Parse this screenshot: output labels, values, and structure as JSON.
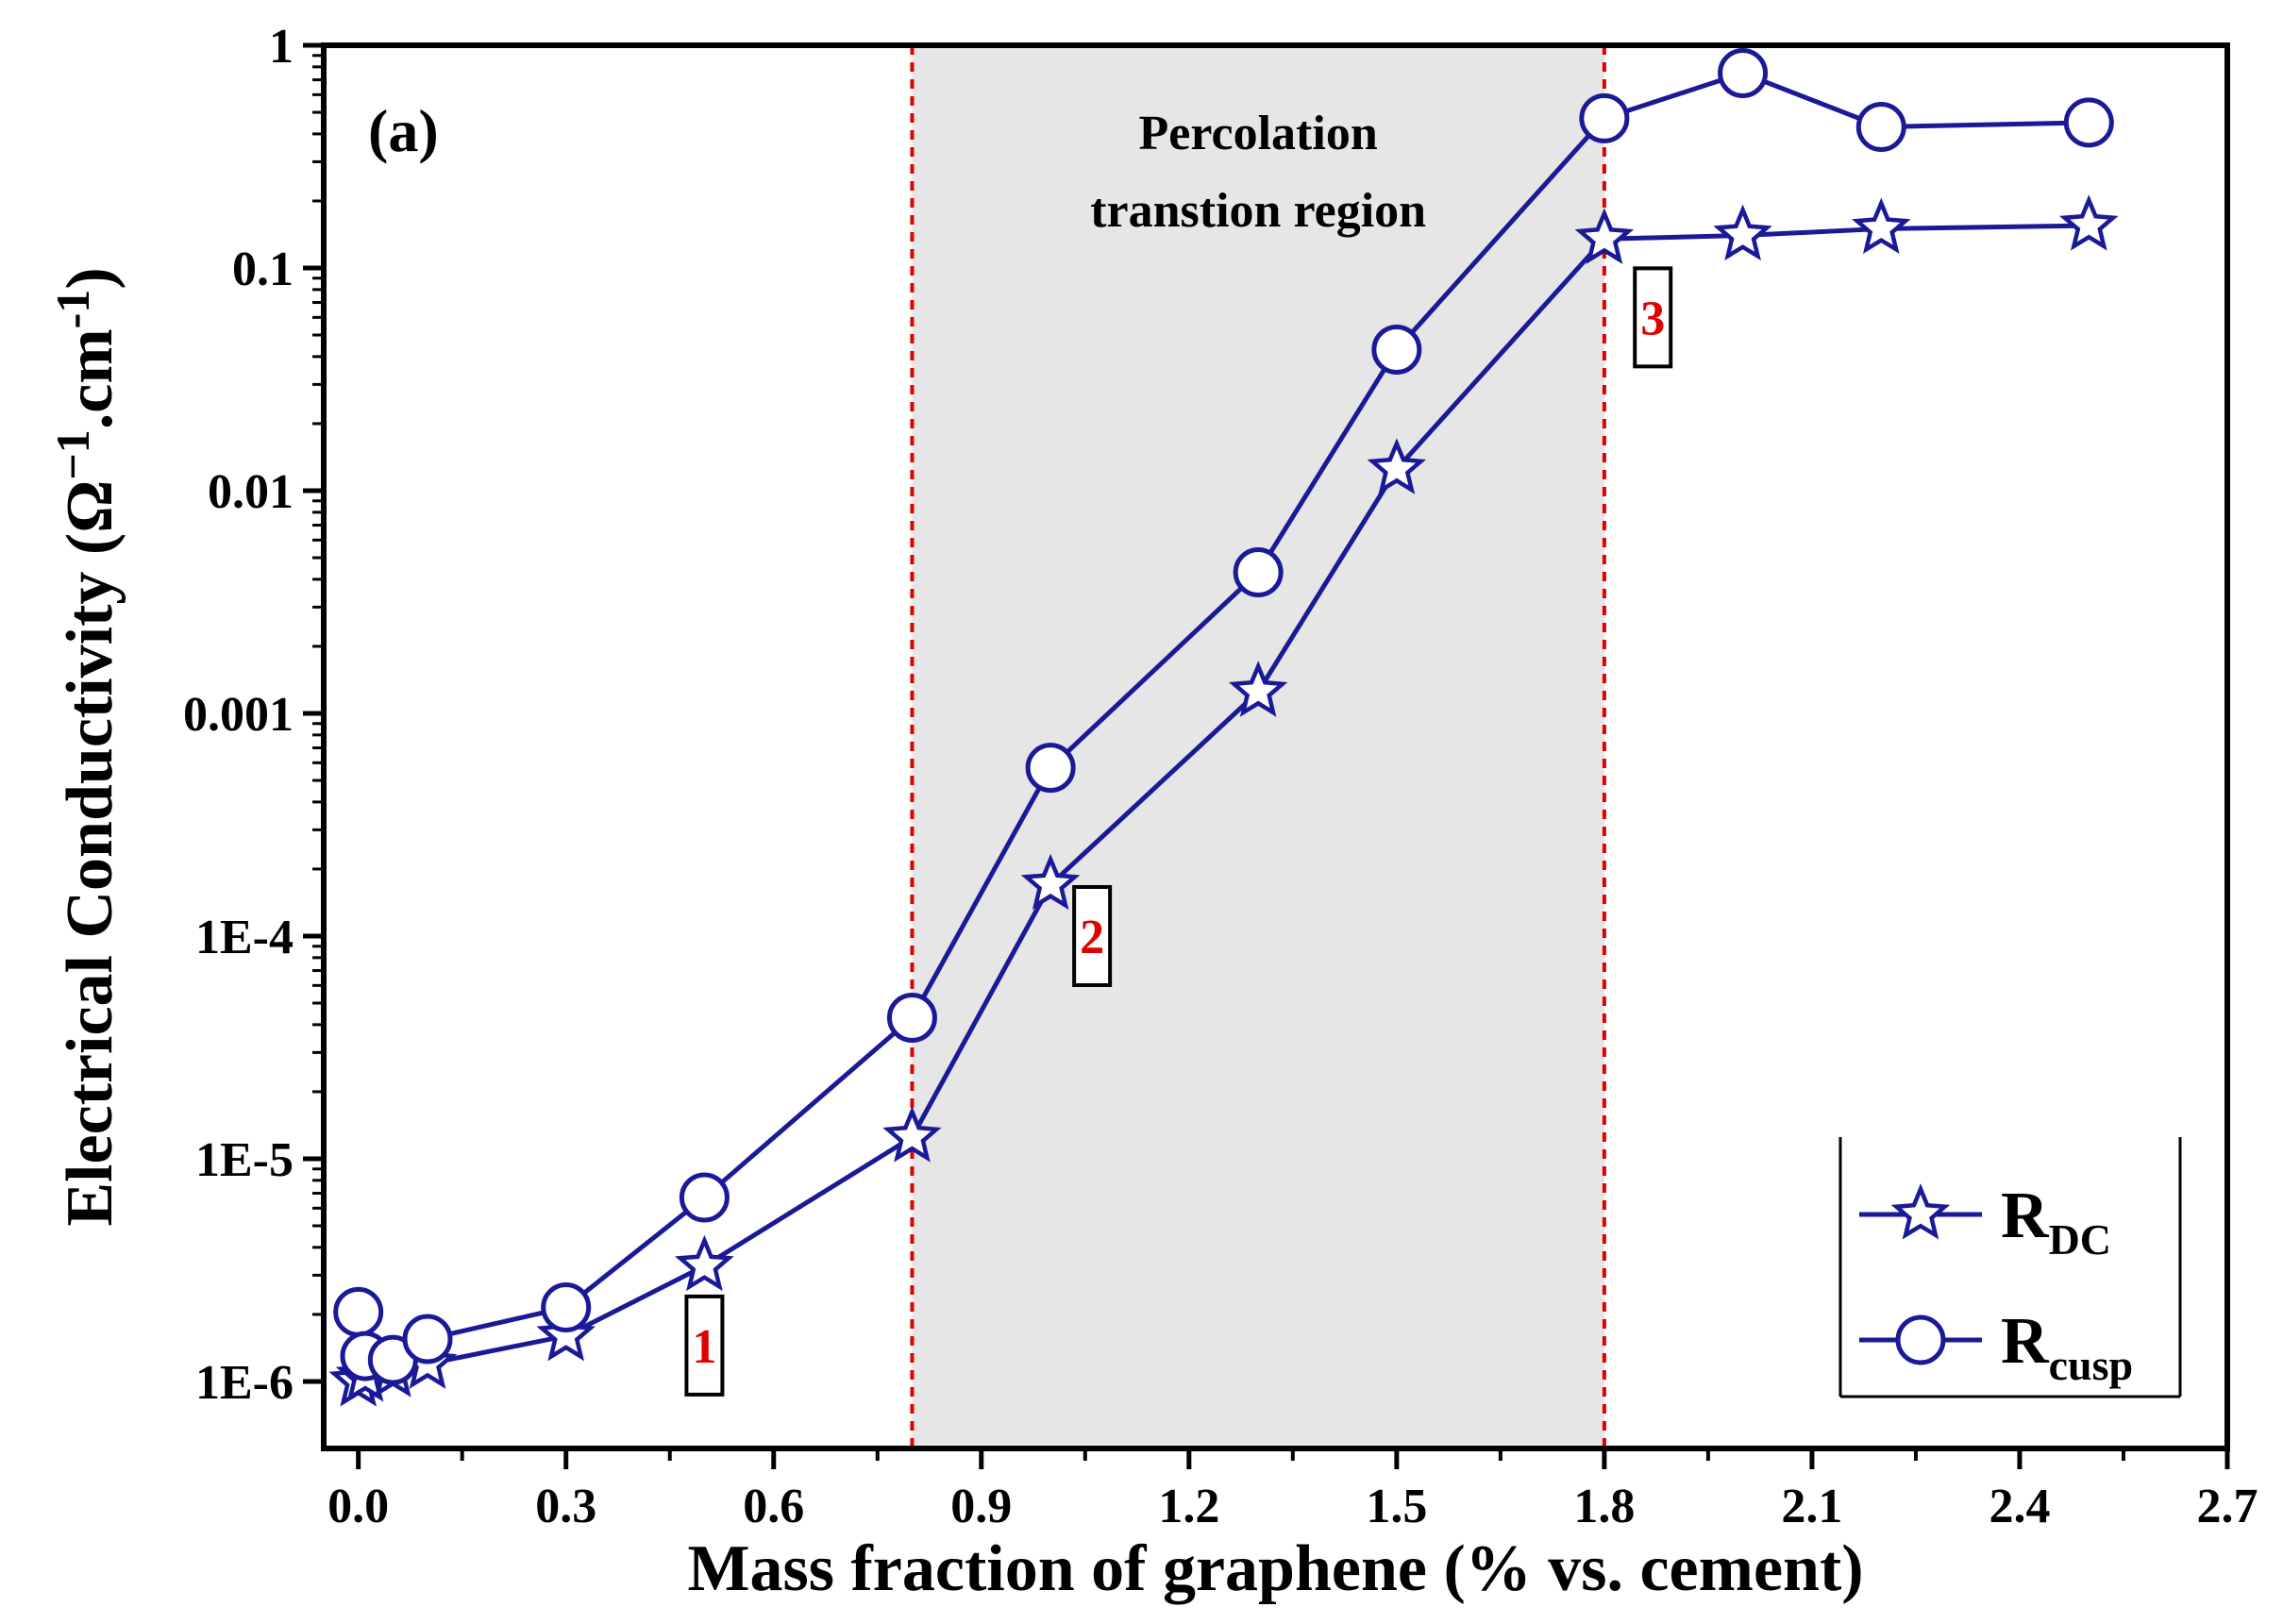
{
  "chart_data": {
    "type": "line",
    "panel_label": "(a)",
    "xlabel": "Mass fraction of graphene (% vs. cement)",
    "ylabel_parts": {
      "main": "Electrical Conductivity (Ω",
      "sup1": "−1",
      "mid": ".cm",
      "sup2": "-1",
      "end": ")"
    },
    "xlim": [
      -0.05,
      2.7
    ],
    "ylim": [
      5e-07,
      1
    ],
    "yscale": "log",
    "x_ticks": [
      "0.0",
      "0.3",
      "0.6",
      "0.9",
      "1.2",
      "1.5",
      "1.8",
      "2.1",
      "2.4",
      "2.7"
    ],
    "y_ticks": [
      "1E-6",
      "1E-5",
      "1E-4",
      "0.001",
      "0.01",
      "0.1",
      "1"
    ],
    "region": {
      "x_start": 0.8,
      "x_end": 1.8,
      "label_line1": "Percolation",
      "label_line2": "transtion region",
      "color": "#e6e6e6",
      "line_color": "#e00000"
    },
    "series": [
      {
        "name_main": "R",
        "name_sub": "DC",
        "marker": "star",
        "color": "#1a1a99",
        "x": [
          0.0,
          0.01,
          0.05,
          0.1,
          0.3,
          0.5,
          0.8,
          1.0,
          1.3,
          1.5,
          1.8,
          2.0,
          2.2,
          2.5
        ],
        "y": [
          1e-06,
          1.05e-06,
          1.1e-06,
          1.2e-06,
          1.6e-06,
          3.3e-06,
          1.25e-05,
          0.00017,
          0.00125,
          0.0125,
          0.135,
          0.14,
          0.15,
          0.155
        ]
      },
      {
        "name_main": "R",
        "name_sub": "cusp",
        "marker": "circle",
        "color": "#1a1a99",
        "x": [
          0.0,
          0.01,
          0.05,
          0.1,
          0.3,
          0.5,
          0.8,
          1.0,
          1.3,
          1.5,
          1.8,
          2.0,
          2.2,
          2.5
        ],
        "y": [
          2.05e-06,
          1.3e-06,
          1.25e-06,
          1.55e-06,
          2.15e-06,
          6.7e-06,
          4.3e-05,
          0.00057,
          0.0043,
          0.043,
          0.47,
          0.75,
          0.43,
          0.45
        ]
      }
    ],
    "markers": [
      {
        "text": "1",
        "x": 0.5,
        "y": 1.45e-06
      },
      {
        "text": "2",
        "x": 1.06,
        "y": 0.0001
      },
      {
        "text": "3",
        "x": 1.87,
        "y": 0.06
      }
    ],
    "legend_position": "bottom-right"
  }
}
